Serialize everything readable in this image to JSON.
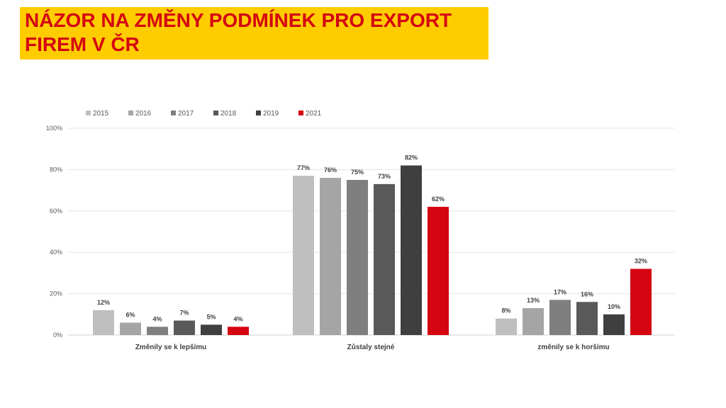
{
  "slide": {
    "title_line1": "NÁZOR NA ZMĚNY PODMÍNEK PRO EXPORT",
    "title_line2": "FIREM V ČR"
  },
  "colors": {
    "title_band": "#ffcc00",
    "title_text": "#d40511"
  },
  "chart_data": {
    "type": "bar",
    "title": "",
    "xlabel": "",
    "ylabel": "",
    "categories": [
      "Změnily se k lepšímu",
      "Zůstaly stejné",
      "změnily se k horšímu"
    ],
    "series": [
      {
        "name": "2015",
        "color": "#bfbfbf",
        "values": [
          12,
          77,
          8
        ]
      },
      {
        "name": "2016",
        "color": "#a5a5a5",
        "values": [
          6,
          76,
          13
        ]
      },
      {
        "name": "2017",
        "color": "#7f7f7f",
        "values": [
          4,
          75,
          17
        ]
      },
      {
        "name": "2018",
        "color": "#595959",
        "values": [
          7,
          73,
          16
        ]
      },
      {
        "name": "2019",
        "color": "#3f3f3f",
        "values": [
          5,
          82,
          10
        ]
      },
      {
        "name": "2021",
        "color": "#d40511",
        "values": [
          4,
          62,
          32
        ]
      }
    ],
    "yticks": [
      "0%",
      "20%",
      "40%",
      "60%",
      "80%",
      "100%"
    ],
    "ylim": [
      0,
      100
    ],
    "value_suffix": "%",
    "grid": true,
    "legend": "top-left"
  }
}
